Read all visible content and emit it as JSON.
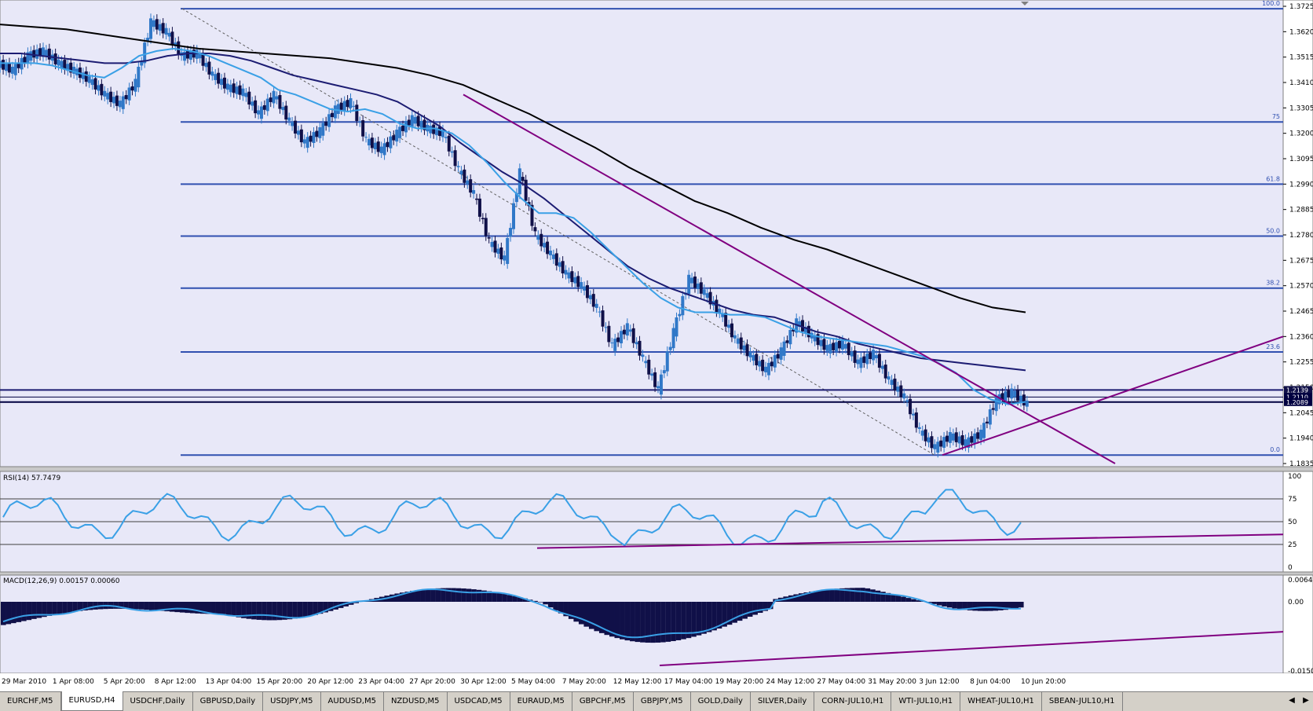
{
  "colors": {
    "background": "#e8e8f8",
    "bull": "#3078c8",
    "bear": "#101048",
    "ma_fast": "#3aa0e6",
    "ma_mid": "#1c1c72",
    "ma_slow": "#000000",
    "fib": "#3050b0",
    "trend": "#800080",
    "hist": "#101048",
    "grid_text": "#000000"
  },
  "price_axis": {
    "ticks": [
      "1.3725",
      "1.3620",
      "1.3515",
      "1.3410",
      "1.3305",
      "1.3200",
      "1.3095",
      "1.2990",
      "1.2885",
      "1.2780",
      "1.2675",
      "1.2570",
      "1.2465",
      "1.2360",
      "1.2255",
      "1.2150",
      "1.2045",
      "1.1940",
      "1.1835"
    ],
    "min": 1.1835,
    "max": 1.3725,
    "labels": [
      "1.2139",
      "1.2110",
      "1.2089"
    ]
  },
  "time_axis": [
    "29 Mar 2010",
    "1 Apr 08:00",
    "5 Apr 20:00",
    "8 Apr 12:00",
    "13 Apr 04:00",
    "15 Apr 20:00",
    "20 Apr 12:00",
    "23 Apr 04:00",
    "27 Apr 20:00",
    "30 Apr 12:00",
    "5 May 04:00",
    "7 May 20:00",
    "12 May 12:00",
    "17 May 04:00",
    "19 May 20:00",
    "24 May 12:00",
    "27 May 04:00",
    "31 May 20:00",
    "3 Jun 12:00",
    "8 Jun 04:00",
    "10 Jun 20:00"
  ],
  "fib_labels": [
    "100.0",
    "75",
    "61.8",
    "50.0",
    "38.2",
    "23.6",
    "0.0"
  ],
  "chart_data": {
    "type": "line",
    "instrument": "EURUSD,H4",
    "x_labels": [
      "29 Mar 2010",
      "1 Apr 08:00",
      "5 Apr 20:00",
      "8 Apr 12:00",
      "13 Apr 04:00",
      "15 Apr 20:00",
      "20 Apr 12:00",
      "23 Apr 04:00",
      "27 Apr 20:00",
      "30 Apr 12:00",
      "5 May 04:00",
      "7 May 20:00",
      "12 May 12:00",
      "17 May 04:00",
      "19 May 20:00",
      "24 May 12:00",
      "27 May 04:00",
      "31 May 20:00",
      "3 Jun 12:00",
      "8 Jun 04:00",
      "10 Jun 20:00"
    ],
    "ylim": [
      1.1835,
      1.3725
    ],
    "close": [
      1.346,
      1.352,
      1.354,
      1.349,
      1.346,
      1.342,
      1.336,
      1.332,
      1.341,
      1.366,
      1.362,
      1.352,
      1.353,
      1.344,
      1.339,
      1.337,
      1.328,
      1.336,
      1.325,
      1.316,
      1.321,
      1.33,
      1.333,
      1.317,
      1.313,
      1.32,
      1.326,
      1.322,
      1.32,
      1.305,
      1.295,
      1.275,
      1.268,
      1.304,
      1.278,
      1.27,
      1.262,
      1.257,
      1.248,
      1.232,
      1.24,
      1.227,
      1.214,
      1.238,
      1.26,
      1.254,
      1.246,
      1.235,
      1.228,
      1.222,
      1.23,
      1.242,
      1.236,
      1.231,
      1.233,
      1.225,
      1.229,
      1.218,
      1.211,
      1.197,
      1.19,
      1.195,
      1.192,
      1.196,
      1.21,
      1.213,
      1.208
    ],
    "ma_fast": [
      1.349,
      1.349,
      1.349,
      1.348,
      1.346,
      1.344,
      1.343,
      1.347,
      1.352,
      1.354,
      1.355,
      1.354,
      1.352,
      1.349,
      1.346,
      1.343,
      1.338,
      1.336,
      1.333,
      1.33,
      1.329,
      1.33,
      1.328,
      1.324,
      1.322,
      1.322,
      1.32,
      1.315,
      1.308,
      1.3,
      1.293,
      1.287,
      1.287,
      1.285,
      1.279,
      1.272,
      1.265,
      1.258,
      1.252,
      1.248,
      1.246,
      1.246,
      1.245,
      1.245,
      1.244,
      1.241,
      1.238,
      1.236,
      1.235,
      1.234,
      1.233,
      1.232,
      1.23,
      1.228,
      1.225,
      1.221,
      1.214,
      1.21,
      1.208,
      1.209
    ],
    "ma_mid": [
      1.353,
      1.353,
      1.352,
      1.351,
      1.35,
      1.349,
      1.349,
      1.35,
      1.352,
      1.353,
      1.353,
      1.352,
      1.35,
      1.347,
      1.344,
      1.342,
      1.34,
      1.338,
      1.336,
      1.333,
      1.328,
      1.323,
      1.316,
      1.31,
      1.304,
      1.299,
      1.293,
      1.286,
      1.279,
      1.272,
      1.265,
      1.26,
      1.256,
      1.253,
      1.25,
      1.247,
      1.245,
      1.244,
      1.241,
      1.238,
      1.236,
      1.233,
      1.231,
      1.229,
      1.227,
      1.226,
      1.225,
      1.224,
      1.223,
      1.222
    ],
    "ma_slow": [
      1.365,
      1.364,
      1.363,
      1.361,
      1.359,
      1.357,
      1.355,
      1.354,
      1.353,
      1.352,
      1.351,
      1.349,
      1.347,
      1.344,
      1.34,
      1.334,
      1.328,
      1.321,
      1.314,
      1.306,
      1.299,
      1.292,
      1.287,
      1.281,
      1.276,
      1.272,
      1.267,
      1.262,
      1.257,
      1.252,
      1.248,
      1.246
    ],
    "fib_levels": [
      1.3715,
      1.3247,
      1.299,
      1.2775,
      1.256,
      1.2296,
      1.187
    ],
    "rsi": {
      "name": "RSI(14) 57.7479",
      "ticks": [
        "100",
        "75",
        "50",
        "25",
        "0"
      ],
      "levels": [
        75,
        50,
        25
      ]
    },
    "macd": {
      "name": "MACD(12,26,9) 0.00157 0.00060",
      "ticks": [
        "0.0064",
        "0.00",
        "-0.0150"
      ]
    }
  },
  "tabs": [
    "EURCHF,M5",
    "EURUSD,H4",
    "USDCHF,Daily",
    "GBPUSD,Daily",
    "USDJPY,M5",
    "AUDUSD,M5",
    "NZDUSD,M5",
    "USDCAD,M5",
    "EURAUD,M5",
    "GBPCHF,M5",
    "GBPJPY,M5",
    "GOLD,Daily",
    "SILVER,Daily",
    "CORN-JUL10,H1",
    "WTI-JUL10,H1",
    "WHEAT-JUL10,H1",
    "SBEAN-JUL10,H1"
  ],
  "active_tab": "EURUSD,H4"
}
